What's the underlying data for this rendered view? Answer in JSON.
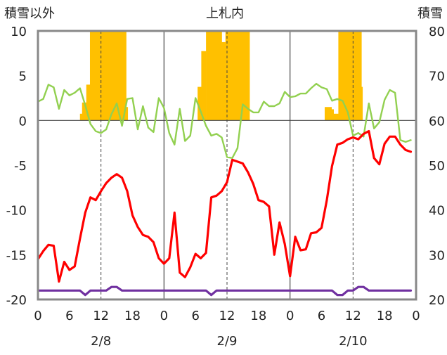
{
  "chart_data": {
    "type": "line",
    "title": "上札内",
    "left_axis": {
      "label": "積雪以外",
      "range": [
        -20,
        10
      ],
      "ticks": [
        "10",
        "5",
        "0",
        "-5",
        "-10",
        "-15",
        "-20"
      ]
    },
    "right_axis": {
      "label": "積雪",
      "range": [
        20,
        80
      ],
      "ticks": [
        "80",
        "70",
        "60",
        "50",
        "40",
        "30",
        "20"
      ]
    },
    "x_ticks": [
      "0",
      "6",
      "12",
      "18",
      "0",
      "6",
      "12",
      "18",
      "0",
      "6",
      "12",
      "18",
      "0"
    ],
    "x_range": [
      0,
      72
    ],
    "dates": [
      "2/8",
      "2/9",
      "2/10"
    ],
    "guide_hours": [
      12,
      36,
      60
    ],
    "colors": {
      "snow": "#ffc000",
      "temperature": "#ff0000",
      "humidity": "#92d050",
      "wind": "#7030a0",
      "frame": "#888888",
      "grid": "#444444"
    },
    "series": [
      {
        "name": "temperature",
        "axis": "left",
        "x": [
          0,
          1,
          2,
          3,
          4,
          5,
          6,
          7,
          8,
          9,
          10,
          11,
          12,
          13,
          14,
          15,
          16,
          17,
          18,
          19,
          20,
          21,
          22,
          23,
          24,
          25,
          26,
          27,
          28,
          29,
          30,
          31,
          32,
          33,
          34,
          35,
          36,
          37,
          38,
          39,
          40,
          41,
          42,
          43,
          44,
          45,
          46,
          47,
          48,
          49,
          50,
          51,
          52,
          53,
          54,
          55,
          56,
          57,
          58,
          59,
          60,
          61,
          62,
          63,
          64,
          65,
          66,
          67,
          68,
          69,
          70,
          71
        ],
        "values": [
          -15.5,
          -14.6,
          -13.9,
          -14.0,
          -18.0,
          -15.8,
          -16.7,
          -16.3,
          -13.2,
          -10.3,
          -8.6,
          -8.9,
          -7.9,
          -7.0,
          -6.4,
          -6.0,
          -6.4,
          -7.9,
          -10.6,
          -11.9,
          -12.8,
          -13.0,
          -13.6,
          -15.4,
          -16.0,
          -15.4,
          -10.3,
          -17.0,
          -17.5,
          -16.4,
          -14.9,
          -15.4,
          -14.8,
          -8.6,
          -8.4,
          -7.9,
          -6.9,
          -4.4,
          -4.6,
          -4.8,
          -5.8,
          -7.1,
          -8.9,
          -9.1,
          -9.6,
          -15.0,
          -11.4,
          -13.8,
          -17.4,
          -13.0,
          -14.5,
          -14.4,
          -12.6,
          -12.5,
          -12.0,
          -8.9,
          -5.1,
          -2.7,
          -2.5,
          -2.1,
          -1.9,
          -2.1,
          -1.5,
          -1.2,
          -4.2,
          -4.9,
          -2.6,
          -1.8,
          -1.8,
          -2.7,
          -3.3,
          -3.5
        ]
      },
      {
        "name": "humidity",
        "axis": "left",
        "x": [
          0,
          1,
          2,
          3,
          4,
          5,
          6,
          7,
          8,
          9,
          10,
          11,
          12,
          13,
          14,
          15,
          16,
          17,
          18,
          19,
          20,
          21,
          22,
          23,
          24,
          25,
          26,
          27,
          28,
          29,
          30,
          31,
          32,
          33,
          34,
          35,
          36,
          37,
          38,
          39,
          40,
          41,
          42,
          43,
          44,
          45,
          46,
          47,
          48,
          49,
          50,
          51,
          52,
          53,
          54,
          55,
          56,
          57,
          58,
          59,
          60,
          61,
          62,
          63,
          64,
          65,
          66,
          67,
          68,
          69,
          70,
          71
        ],
        "values": [
          2.1,
          2.4,
          4.0,
          3.7,
          1.3,
          3.4,
          2.8,
          3.1,
          3.6,
          1.7,
          -0.4,
          -1.2,
          -1.4,
          -1.0,
          0.7,
          1.9,
          -0.6,
          2.4,
          2.5,
          -1.0,
          1.6,
          -0.8,
          -1.3,
          2.5,
          1.4,
          -1.4,
          -2.7,
          1.3,
          -2.3,
          -1.7,
          2.5,
          1.0,
          -0.6,
          -1.7,
          -1.5,
          -1.9,
          -4.1,
          -4.2,
          -3.1,
          1.8,
          1.3,
          0.9,
          0.9,
          2.1,
          1.6,
          1.6,
          1.9,
          3.2,
          2.6,
          2.7,
          3.0,
          3.0,
          3.6,
          4.1,
          3.7,
          3.5,
          2.2,
          2.4,
          2.2,
          0.9,
          -1.7,
          -1.4,
          -1.8,
          1.9,
          -0.9,
          -0.2,
          2.3,
          3.4,
          3.1,
          -2.2,
          -2.4,
          -2.2
        ]
      },
      {
        "name": "wind",
        "axis": "left",
        "x": [
          0,
          8,
          9,
          10,
          11,
          12,
          13,
          14,
          15,
          16,
          17,
          18,
          32,
          33,
          34,
          35,
          36,
          37,
          38,
          39,
          40,
          41,
          45,
          46,
          47,
          48,
          49,
          50,
          51,
          52,
          53,
          54,
          55,
          56,
          57,
          58,
          59,
          60,
          61,
          62,
          63,
          64,
          65,
          66,
          67,
          68,
          69,
          70,
          71
        ],
        "values": [
          -19.0,
          -19.0,
          -19.5,
          -19.0,
          -19.0,
          -19.0,
          -19.0,
          -18.6,
          -18.6,
          -19.0,
          -19.0,
          -19.0,
          -19.0,
          -19.5,
          -19.0,
          -19.0,
          -19.0,
          -19.0,
          -19.0,
          -19.0,
          -19.0,
          -19.0,
          -19.0,
          -19.0,
          -19.0,
          -19.0,
          -19.0,
          -19.0,
          -19.0,
          -19.0,
          -19.0,
          -19.0,
          -19.0,
          -19.0,
          -19.5,
          -19.5,
          -19.0,
          -19.0,
          -18.6,
          -18.6,
          -19.0,
          -19.0,
          -19.0,
          -19.0,
          -19.0,
          -19.0,
          -19.0,
          -19.0,
          -19.0
        ]
      },
      {
        "name": "snow",
        "axis": "right",
        "type": "bar",
        "bars": [
          {
            "from": 8,
            "to": 8.4,
            "value": 61.5
          },
          {
            "from": 8.4,
            "to": 9.2,
            "value": 64.0
          },
          {
            "from": 9.2,
            "to": 9.9,
            "value": 68.0
          },
          {
            "from": 9.9,
            "to": 16.8,
            "value": 80.0
          },
          {
            "from": 16.8,
            "to": 17.1,
            "value": 63.0
          },
          {
            "from": 30.4,
            "to": 31.1,
            "value": 67.5
          },
          {
            "from": 31.1,
            "to": 32.0,
            "value": 75.5
          },
          {
            "from": 32.0,
            "to": 35.0,
            "value": 80.0
          },
          {
            "from": 35.0,
            "to": 35.7,
            "value": 77.5
          },
          {
            "from": 35.7,
            "to": 40.3,
            "value": 80.0
          },
          {
            "from": 54.6,
            "to": 55.9,
            "value": 63.0
          },
          {
            "from": 55.9,
            "to": 56.3,
            "value": 62.5
          },
          {
            "from": 56.3,
            "to": 57.2,
            "value": 61.5
          },
          {
            "from": 57.2,
            "to": 61.6,
            "value": 80.0
          },
          {
            "from": 61.6,
            "to": 61.8,
            "value": 67.5
          }
        ]
      }
    ]
  }
}
